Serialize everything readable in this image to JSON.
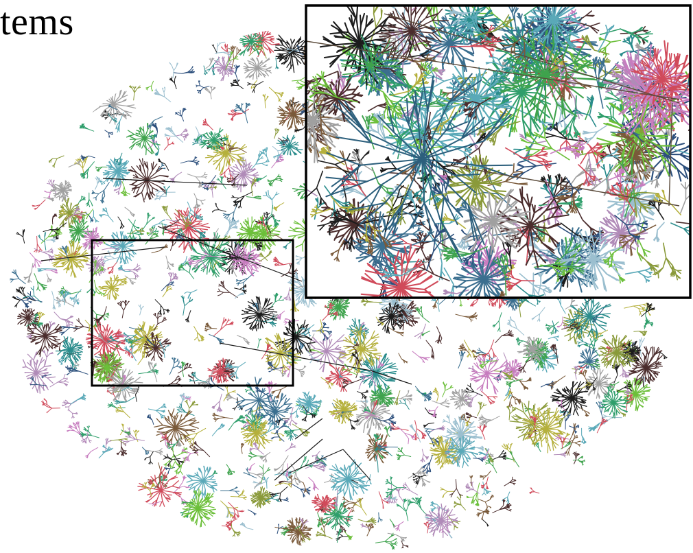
{
  "caption": {
    "text": "tems"
  },
  "figure": {
    "kind": "large tree-graph visualization with inset zoom",
    "background": "#ffffff",
    "frame_color": "#000000",
    "edge_line_color": "#1a1a1a",
    "palette": [
      "#2a8c8c",
      "#3fa34d",
      "#6cbf3a",
      "#b08bb8",
      "#c77dbf",
      "#8a9a3a",
      "#3b6f8f",
      "#2c4f7c",
      "#7a5a3a",
      "#4b2d2d",
      "#d04a5a",
      "#9bbfcf",
      "#5aa9b8",
      "#2f9e6b",
      "#a0a0a0",
      "#b5b03c",
      "#1c1c1c"
    ],
    "seed": 20240611
  }
}
